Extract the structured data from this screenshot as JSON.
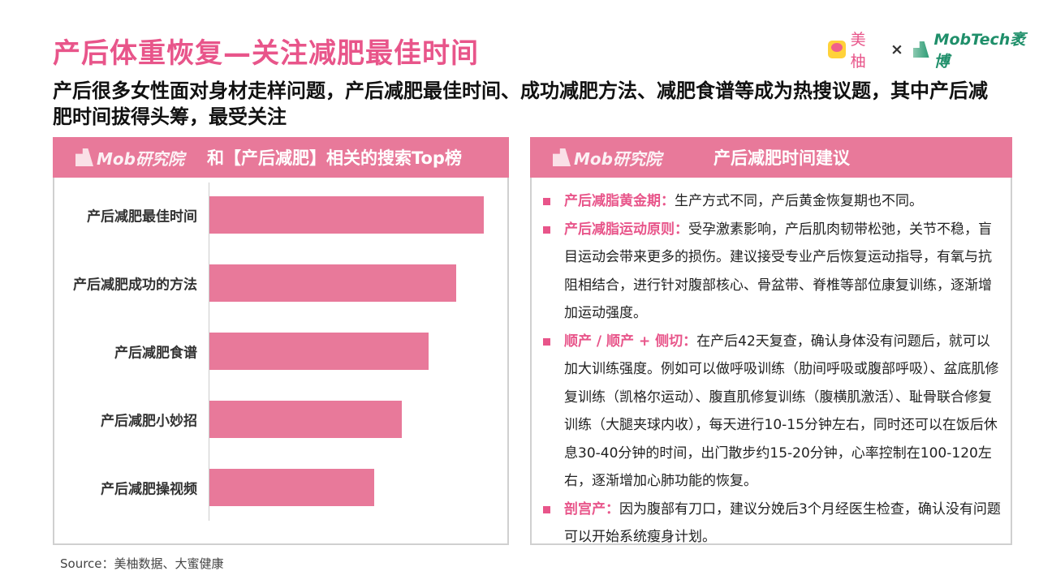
{
  "title": "产后体重恢复—关注减肥最佳时间",
  "logos": {
    "meiyou": "美柚",
    "times": "×",
    "mobtech": "MobTech袤博"
  },
  "subtitle": "产后很多女性面对身材走样问题，产后减肥最佳时间、成功减肥方法、减肥食谱等成为热搜议题，其中产后减肥时间拔得头筹，最受关注",
  "left_panel": {
    "logo": "Mob研究院",
    "heading": "和【产后减肥】相关的搜索Top榜"
  },
  "right_panel": {
    "logo": "Mob研究院",
    "heading": "产后减肥时间建议",
    "items": [
      {
        "label": "产后减脂黄金期：",
        "text": "生产方式不同，产后黄金恢复期也不同。"
      },
      {
        "label": "产后减脂运动原则：",
        "text": "受孕激素影响，产后肌肉韧带松弛，关节不稳，盲目运动会带来更多的损伤。建议接受专业产后恢复运动指导，有氧与抗阻相结合，进行针对腹部核心、骨盆带、脊椎等部位康复训练，逐渐增加运动强度。"
      },
      {
        "label": "顺产 / 顺产 + 侧切：",
        "text": "在产后42天复查，确认身体没有问题后，就可以加大训练强度。例如可以做呼吸训练（肋间呼吸或腹部呼吸）、盆底肌修复训练（凯格尔运动）、腹直肌修复训练（腹横肌激活）、耻骨联合修复训练（大腿夹球内收），每天进行10-15分钟左右，同时还可以在饭后休息30-40分钟的时间，出门散步约15-20分钟，心率控制在100-120左右，逐渐增加心肺功能的恢复。"
      },
      {
        "label": "剖宫产：",
        "text": "因为腹部有刀口，建议分娩后3个月经医生检查，确认没有问题可以开始系统瘦身计划。"
      }
    ]
  },
  "source": "Source：美柚数据、大蜜健康",
  "chart_data": {
    "type": "bar",
    "orientation": "horizontal",
    "title": "和【产后减肥】相关的搜索Top榜",
    "categories": [
      "产后减肥最佳时间",
      "产后减肥成功的方法",
      "产后减肥食谱",
      "产后减肥小妙招",
      "产后减肥操视频"
    ],
    "values": [
      100,
      90,
      80,
      70,
      60
    ],
    "xlabel": "",
    "ylabel": "",
    "xlim": [
      0,
      108
    ],
    "grid": false,
    "color": "#e8799a"
  }
}
